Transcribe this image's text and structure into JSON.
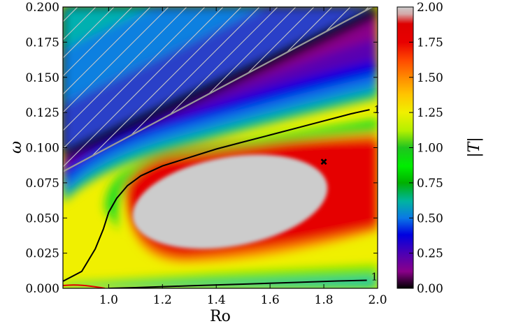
{
  "chart_data": {
    "type": "heatmap",
    "title": "",
    "xlabel": "Ro",
    "ylabel": "ω",
    "xlim": [
      0.83,
      2.0
    ],
    "ylim": [
      0.0,
      0.2
    ],
    "x_ticks": [
      "1.0",
      "1.2",
      "1.4",
      "1.6",
      "1.8",
      "2.0"
    ],
    "x_tick_values": [
      1.0,
      1.2,
      1.4,
      1.6,
      1.8,
      2.0
    ],
    "y_ticks": [
      "0.000",
      "0.025",
      "0.050",
      "0.075",
      "0.100",
      "0.125",
      "0.150",
      "0.175",
      "0.200"
    ],
    "y_tick_values": [
      0.0,
      0.025,
      0.05,
      0.075,
      0.1,
      0.125,
      0.15,
      0.175,
      0.2
    ],
    "colorbar": {
      "label": "|T|",
      "range": [
        0.0,
        2.0
      ],
      "ticks": [
        "0.00",
        "0.25",
        "0.50",
        "0.75",
        "1.00",
        "1.25",
        "1.50",
        "1.75",
        "2.00"
      ],
      "tick_values": [
        0.0,
        0.25,
        0.5,
        0.75,
        1.0,
        1.25,
        1.5,
        1.75,
        2.0
      ],
      "colormap": [
        [
          0.0,
          "#000000"
        ],
        [
          0.12,
          "#8a008a"
        ],
        [
          0.25,
          "#4b00b5"
        ],
        [
          0.38,
          "#0000e0"
        ],
        [
          0.5,
          "#0a78e6"
        ],
        [
          0.62,
          "#00b4a0"
        ],
        [
          0.75,
          "#00b000"
        ],
        [
          0.87,
          "#00ee00"
        ],
        [
          1.0,
          "#1fc41f"
        ],
        [
          1.12,
          "#b4f000"
        ],
        [
          1.25,
          "#f0f000"
        ],
        [
          1.38,
          "#ffc400"
        ],
        [
          1.5,
          "#ff8a00"
        ],
        [
          1.62,
          "#ff4a00"
        ],
        [
          1.75,
          "#e80000"
        ],
        [
          1.88,
          "#dd0000"
        ],
        [
          1.95,
          "#d4a8a8"
        ],
        [
          2.0,
          "#cccccc"
        ]
      ]
    },
    "contour_label": "1",
    "contours": [
      {
        "level": 1,
        "name": "upper |T|=1 contour",
        "points": [
          [
            0.83,
            0.005
          ],
          [
            0.9,
            0.012
          ],
          [
            0.95,
            0.028
          ],
          [
            0.98,
            0.042
          ],
          [
            1.0,
            0.054
          ],
          [
            1.03,
            0.064
          ],
          [
            1.07,
            0.073
          ],
          [
            1.12,
            0.08
          ],
          [
            1.2,
            0.087
          ],
          [
            1.3,
            0.093
          ],
          [
            1.4,
            0.099
          ],
          [
            1.5,
            0.104
          ],
          [
            1.6,
            0.109
          ],
          [
            1.7,
            0.114
          ],
          [
            1.8,
            0.119
          ],
          [
            1.9,
            0.124
          ],
          [
            1.97,
            0.127
          ]
        ]
      },
      {
        "level": 1,
        "name": "lower |T|=1 contour",
        "points": [
          [
            1.0,
            0.0
          ],
          [
            1.1,
            0.0005
          ],
          [
            1.3,
            0.0018
          ],
          [
            1.5,
            0.003
          ],
          [
            1.7,
            0.0042
          ],
          [
            1.85,
            0.0052
          ],
          [
            1.96,
            0.0057
          ]
        ]
      }
    ],
    "boundary_line": {
      "name": "hatched region boundary",
      "points": [
        [
          0.83,
          0.083
        ],
        [
          1.98,
          0.2
        ]
      ]
    },
    "marker": {
      "symbol": "x",
      "x": 1.8,
      "y": 0.09,
      "color": "#000000"
    }
  }
}
